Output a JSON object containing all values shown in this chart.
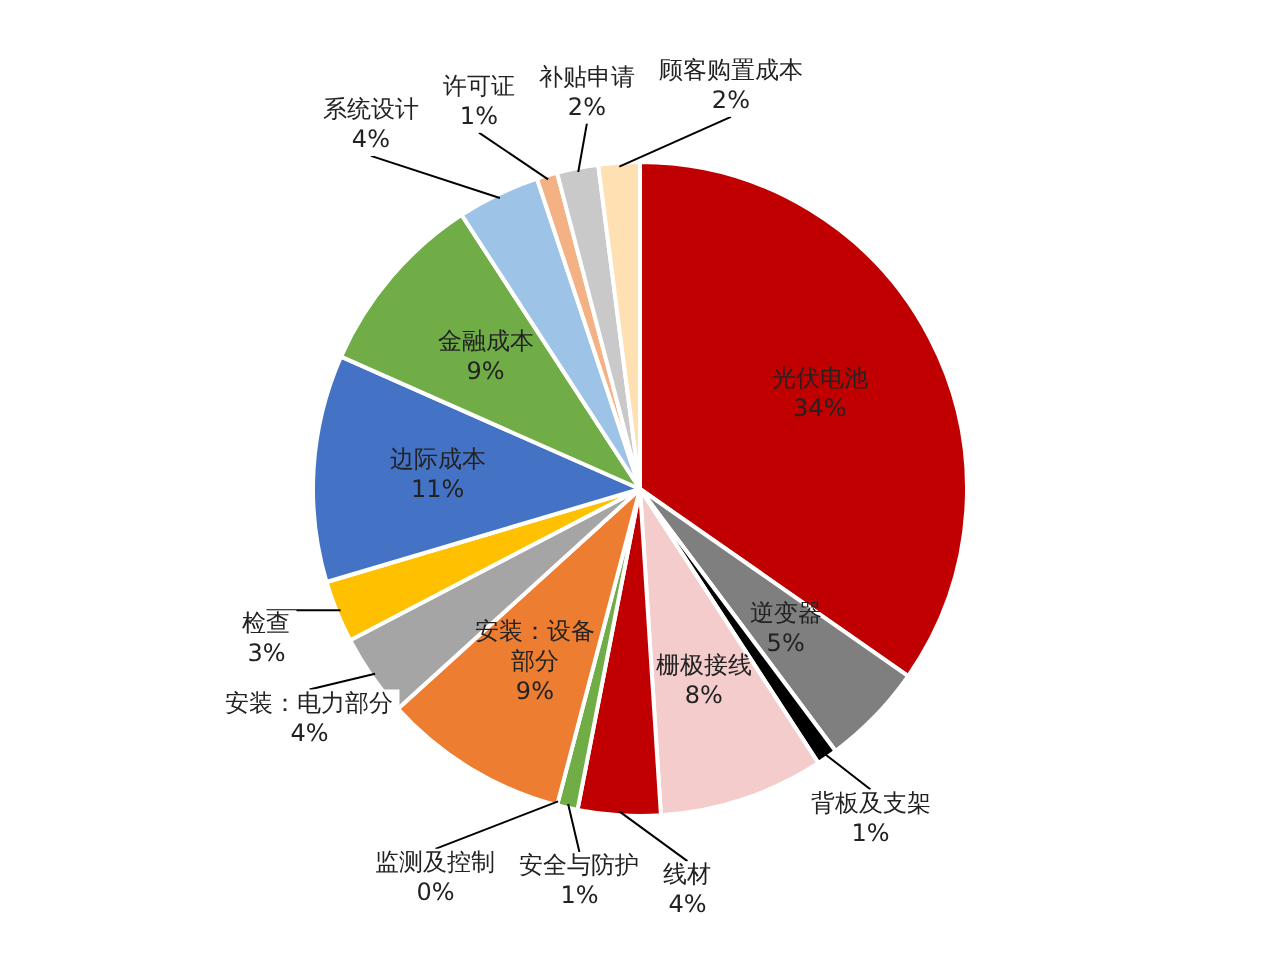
{
  "chart_data": {
    "type": "pie",
    "categories": [
      "光伏电池",
      "逆变器",
      "背板及支架",
      "栅极接线",
      "线材",
      "安全与防护",
      "监测及控制",
      "安装：设备部分",
      "安装：电力部分",
      "检查",
      "边际成本",
      "金融成本",
      "系统设计",
      "许可证",
      "补贴申请",
      "顾客购置成本"
    ],
    "values": [
      34,
      5,
      1,
      8,
      4,
      1,
      0,
      9,
      4,
      3,
      11,
      9,
      4,
      1,
      2,
      2
    ],
    "colors": [
      "#c00000",
      "#7f7f7f",
      "#000000",
      "#f4cccc",
      "#c00000",
      "#70ad47",
      "#8faadc",
      "#ed7d31",
      "#a5a5a5",
      "#ffc000",
      "#4472c4",
      "#70ad47",
      "#9dc3e6",
      "#f4b183",
      "#c9c9c9",
      "#ffe0b2"
    ],
    "value_labels": [
      "34%",
      "5%",
      "1%",
      "8%",
      "4%",
      "1%",
      "0%",
      "9%",
      "4%",
      "3%",
      "11%",
      "9%",
      "4%",
      "1%",
      "2%",
      "2%"
    ],
    "legend": false
  }
}
